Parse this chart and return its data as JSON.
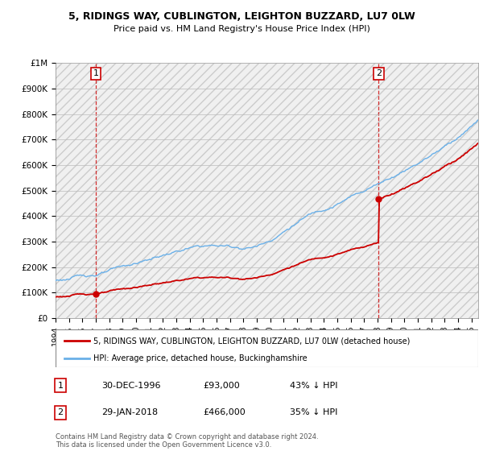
{
  "title": "5, RIDINGS WAY, CUBLINGTON, LEIGHTON BUZZARD, LU7 0LW",
  "subtitle": "Price paid vs. HM Land Registry's House Price Index (HPI)",
  "sale1_year": 1996.99,
  "sale1_price": 93000,
  "sale1_label": "30-DEC-1996",
  "sale1_hpi_pct": "43% ↓ HPI",
  "sale2_year": 2018.08,
  "sale2_price": 466000,
  "sale2_label": "29-JAN-2018",
  "sale2_hpi_pct": "35% ↓ HPI",
  "hpi_color": "#6ab0e8",
  "price_color": "#cc0000",
  "vline_color": "#cc0000",
  "legend_label_price": "5, RIDINGS WAY, CUBLINGTON, LEIGHTON BUZZARD, LU7 0LW (detached house)",
  "legend_label_hpi": "HPI: Average price, detached house, Buckinghamshire",
  "footer": "Contains HM Land Registry data © Crown copyright and database right 2024.\nThis data is licensed under the Open Government Licence v3.0.",
  "ylim_max": 1000000,
  "ylim_min": 0,
  "xlim_min": 1994,
  "xlim_max": 2025.5
}
